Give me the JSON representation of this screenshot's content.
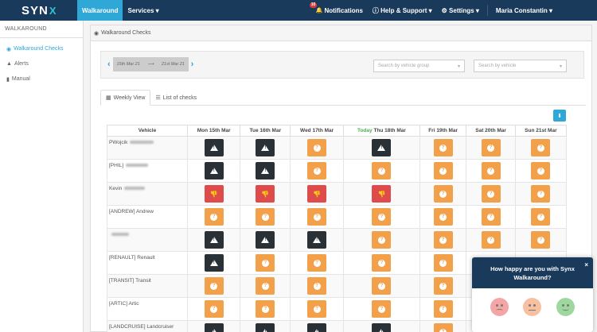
{
  "app": {
    "logo": "SYN",
    "logo_x": "X"
  },
  "topnav": {
    "walkaround": "Walkaround",
    "services": "Services",
    "notifications_count": "10",
    "notifications": "Notifications",
    "help": "Help & Support",
    "settings": "Settings",
    "user": "Maria Constantin"
  },
  "sidebar": {
    "title": "WALKAROUND",
    "items": [
      {
        "label": "Walkaround Checks",
        "icon": "user-circle-icon"
      },
      {
        "label": "Alerts",
        "icon": "warning-icon"
      },
      {
        "label": "Manual",
        "icon": "book-icon"
      }
    ]
  },
  "panel": {
    "title": "Walkaround Checks"
  },
  "filters": {
    "date_start": "15th Mar 21",
    "date_arrow": "⟶",
    "date_end": "21st Mar 21",
    "vehicle_group_placeholder": "Search by vehicle group",
    "vehicle_placeholder": "Search by vehicle"
  },
  "tabs": [
    {
      "label": "Weekly View"
    },
    {
      "label": "List of checks"
    }
  ],
  "table": {
    "vehicle_header": "Vehicle",
    "today_label": "Today",
    "days": [
      "Mon 15th Mar",
      "Tue 16th Mar",
      "Wed 17th Mar",
      "Thu 18th Mar",
      "Fri 19th Mar",
      "Sat 20th Mar",
      "Sun 21st Mar"
    ],
    "rows": [
      {
        "vehicle": "PWojcik",
        "statuses": [
          "dark",
          "dark",
          "orange",
          "dark",
          "orange",
          "orange",
          "orange"
        ]
      },
      {
        "vehicle": "[PHIL]",
        "statuses": [
          "dark",
          "dark",
          "orange",
          "orange",
          "orange",
          "orange",
          "orange"
        ]
      },
      {
        "vehicle": "Kevin",
        "statuses": [
          "red",
          "red",
          "red",
          "red",
          "orange",
          "orange",
          "orange"
        ]
      },
      {
        "vehicle": "[ANDREW] Andrew",
        "statuses": [
          "orange",
          "orange",
          "orange",
          "orange",
          "orange",
          "orange",
          "orange"
        ]
      },
      {
        "vehicle": "",
        "statuses": [
          "dark",
          "dark",
          "dark",
          "orange",
          "orange",
          "orange",
          "orange"
        ]
      },
      {
        "vehicle": "[RENAULT] Renault",
        "statuses": [
          "dark",
          "orange",
          "orange",
          "orange",
          "orange",
          "",
          ""
        ]
      },
      {
        "vehicle": "[TRANSIT] Transit",
        "statuses": [
          "orange",
          "orange",
          "orange",
          "orange",
          "orange",
          "",
          ""
        ]
      },
      {
        "vehicle": "[ARTIC] Artic",
        "statuses": [
          "orange",
          "orange",
          "orange",
          "orange",
          "orange",
          "",
          ""
        ]
      },
      {
        "vehicle": "[LANDCRUISE] Landcruiser",
        "statuses": [
          "dark",
          "dark",
          "dark",
          "dark",
          "orange",
          "",
          ""
        ]
      }
    ]
  },
  "feedback": {
    "question": "How happy are you with Synx Walkaround?",
    "close": "×"
  }
}
